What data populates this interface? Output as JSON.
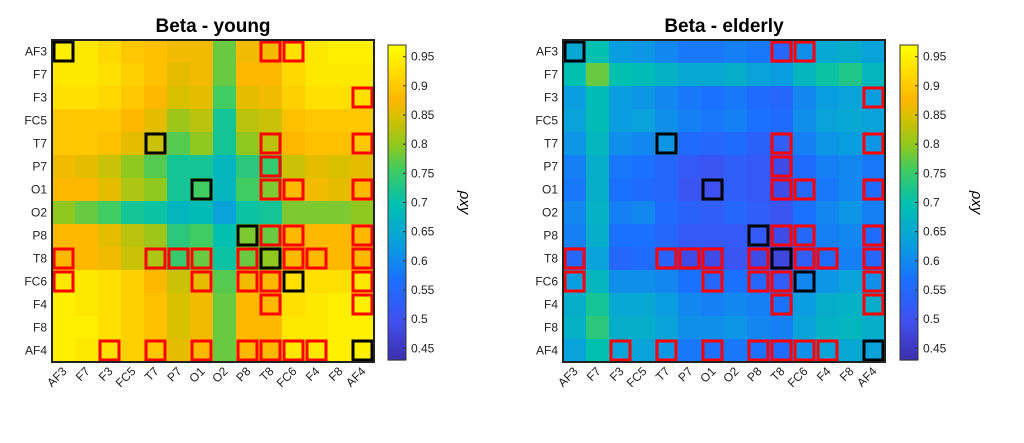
{
  "chart_data": [
    {
      "type": "heatmap",
      "title": "Beta - young",
      "labels": [
        "AF3",
        "F7",
        "F3",
        "FC5",
        "T7",
        "P7",
        "O1",
        "O2",
        "P8",
        "T8",
        "FC6",
        "F4",
        "F8",
        "AF4"
      ],
      "colorbar_label": "ρxy",
      "colorbar_ticks": [
        "0.45",
        "0.5",
        "0.55",
        "0.6",
        "0.65",
        "0.7",
        "0.75",
        "0.8",
        "0.85",
        "0.9",
        "0.95"
      ],
      "clim": [
        0.43,
        0.97
      ],
      "values": [
        [
          0.95,
          0.94,
          0.92,
          0.9,
          0.89,
          0.87,
          0.87,
          0.78,
          0.87,
          0.87,
          0.93,
          0.94,
          0.95,
          0.95
        ],
        [
          0.94,
          0.94,
          0.93,
          0.91,
          0.89,
          0.86,
          0.87,
          0.78,
          0.88,
          0.88,
          0.92,
          0.94,
          0.94,
          0.94
        ],
        [
          0.93,
          0.93,
          0.92,
          0.9,
          0.88,
          0.85,
          0.86,
          0.76,
          0.86,
          0.87,
          0.91,
          0.93,
          0.93,
          0.93
        ],
        [
          0.9,
          0.9,
          0.9,
          0.88,
          0.86,
          0.81,
          0.83,
          0.72,
          0.83,
          0.84,
          0.89,
          0.9,
          0.9,
          0.9
        ],
        [
          0.9,
          0.9,
          0.89,
          0.86,
          0.84,
          0.77,
          0.8,
          0.72,
          0.8,
          0.83,
          0.88,
          0.89,
          0.89,
          0.9
        ],
        [
          0.87,
          0.86,
          0.84,
          0.8,
          0.77,
          0.72,
          0.72,
          0.68,
          0.74,
          0.75,
          0.84,
          0.86,
          0.85,
          0.86
        ],
        [
          0.88,
          0.88,
          0.86,
          0.82,
          0.8,
          0.72,
          0.76,
          0.68,
          0.76,
          0.79,
          0.88,
          0.87,
          0.86,
          0.88
        ],
        [
          0.8,
          0.78,
          0.76,
          0.72,
          0.71,
          0.68,
          0.69,
          0.64,
          0.71,
          0.72,
          0.79,
          0.79,
          0.79,
          0.8
        ],
        [
          0.88,
          0.88,
          0.86,
          0.83,
          0.81,
          0.74,
          0.76,
          0.7,
          0.79,
          0.78,
          0.88,
          0.88,
          0.88,
          0.88
        ],
        [
          0.88,
          0.88,
          0.87,
          0.84,
          0.82,
          0.75,
          0.78,
          0.71,
          0.78,
          0.8,
          0.88,
          0.88,
          0.88,
          0.88
        ],
        [
          0.94,
          0.94,
          0.93,
          0.91,
          0.88,
          0.84,
          0.86,
          0.77,
          0.87,
          0.88,
          0.93,
          0.93,
          0.93,
          0.94
        ],
        [
          0.95,
          0.94,
          0.93,
          0.91,
          0.89,
          0.85,
          0.87,
          0.78,
          0.88,
          0.88,
          0.93,
          0.94,
          0.95,
          0.95
        ],
        [
          0.95,
          0.95,
          0.93,
          0.91,
          0.89,
          0.85,
          0.87,
          0.78,
          0.88,
          0.88,
          0.94,
          0.94,
          0.95,
          0.95
        ],
        [
          0.95,
          0.94,
          0.93,
          0.91,
          0.9,
          0.86,
          0.88,
          0.78,
          0.88,
          0.88,
          0.94,
          0.94,
          0.95,
          0.95
        ]
      ]
    },
    {
      "type": "heatmap",
      "title": "Beta - elderly",
      "labels": [
        "AF3",
        "F7",
        "F3",
        "FC5",
        "T7",
        "P7",
        "O1",
        "O2",
        "P8",
        "T8",
        "FC6",
        "F4",
        "F8",
        "AF4"
      ],
      "colorbar_label": "ρxy",
      "colorbar_ticks": [
        "0.45",
        "0.5",
        "0.55",
        "0.6",
        "0.65",
        "0.7",
        "0.75",
        "0.8",
        "0.85",
        "0.9",
        "0.95"
      ],
      "clim": [
        0.43,
        0.97
      ],
      "values": [
        [
          0.65,
          0.7,
          0.63,
          0.62,
          0.6,
          0.58,
          0.58,
          0.59,
          0.58,
          0.55,
          0.61,
          0.65,
          0.66,
          0.64
        ],
        [
          0.7,
          0.78,
          0.7,
          0.69,
          0.67,
          0.65,
          0.65,
          0.66,
          0.64,
          0.63,
          0.68,
          0.71,
          0.73,
          0.68
        ],
        [
          0.63,
          0.69,
          0.63,
          0.62,
          0.6,
          0.58,
          0.57,
          0.58,
          0.56,
          0.55,
          0.6,
          0.63,
          0.64,
          0.63
        ],
        [
          0.64,
          0.69,
          0.63,
          0.64,
          0.61,
          0.59,
          0.58,
          0.59,
          0.57,
          0.56,
          0.61,
          0.64,
          0.65,
          0.64
        ],
        [
          0.62,
          0.68,
          0.61,
          0.6,
          0.62,
          0.56,
          0.55,
          0.56,
          0.54,
          0.53,
          0.59,
          0.62,
          0.63,
          0.62
        ],
        [
          0.59,
          0.66,
          0.58,
          0.57,
          0.55,
          0.52,
          0.51,
          0.53,
          0.52,
          0.49,
          0.56,
          0.59,
          0.6,
          0.58
        ],
        [
          0.58,
          0.66,
          0.57,
          0.56,
          0.55,
          0.51,
          0.5,
          0.53,
          0.52,
          0.49,
          0.55,
          0.58,
          0.6,
          0.56
        ],
        [
          0.6,
          0.67,
          0.59,
          0.6,
          0.56,
          0.54,
          0.53,
          0.55,
          0.53,
          0.51,
          0.57,
          0.6,
          0.62,
          0.59
        ],
        [
          0.59,
          0.66,
          0.57,
          0.57,
          0.55,
          0.52,
          0.52,
          0.52,
          0.52,
          0.49,
          0.55,
          0.59,
          0.6,
          0.56
        ],
        [
          0.55,
          0.64,
          0.55,
          0.56,
          0.54,
          0.49,
          0.49,
          0.51,
          0.49,
          0.48,
          0.53,
          0.56,
          0.59,
          0.55
        ],
        [
          0.63,
          0.68,
          0.61,
          0.61,
          0.6,
          0.57,
          0.55,
          0.57,
          0.55,
          0.53,
          0.6,
          0.62,
          0.64,
          0.61
        ],
        [
          0.66,
          0.72,
          0.65,
          0.65,
          0.63,
          0.6,
          0.59,
          0.6,
          0.59,
          0.57,
          0.63,
          0.66,
          0.67,
          0.66
        ],
        [
          0.67,
          0.74,
          0.66,
          0.66,
          0.64,
          0.61,
          0.61,
          0.62,
          0.6,
          0.59,
          0.64,
          0.67,
          0.68,
          0.66
        ],
        [
          0.64,
          0.7,
          0.64,
          0.64,
          0.62,
          0.58,
          0.57,
          0.58,
          0.57,
          0.56,
          0.61,
          0.64,
          0.65,
          0.64
        ]
      ]
    }
  ],
  "highlight_red": [
    [
      0,
      9
    ],
    [
      0,
      10
    ],
    [
      2,
      13
    ],
    [
      4,
      9
    ],
    [
      4,
      13
    ],
    [
      5,
      9
    ],
    [
      6,
      9
    ],
    [
      6,
      10
    ],
    [
      6,
      13
    ],
    [
      8,
      9
    ],
    [
      8,
      10
    ],
    [
      8,
      13
    ],
    [
      9,
      0
    ],
    [
      9,
      4
    ],
    [
      9,
      5
    ],
    [
      9,
      6
    ],
    [
      9,
      8
    ],
    [
      9,
      10
    ],
    [
      9,
      11
    ],
    [
      9,
      13
    ],
    [
      10,
      0
    ],
    [
      10,
      6
    ],
    [
      10,
      8
    ],
    [
      10,
      9
    ],
    [
      10,
      13
    ],
    [
      11,
      9
    ],
    [
      11,
      13
    ],
    [
      13,
      2
    ],
    [
      13,
      4
    ],
    [
      13,
      6
    ],
    [
      13,
      8
    ],
    [
      13,
      9
    ],
    [
      13,
      10
    ],
    [
      13,
      11
    ]
  ],
  "highlight_black": [
    [
      0,
      0
    ],
    [
      4,
      4
    ],
    [
      6,
      6
    ],
    [
      8,
      8
    ],
    [
      9,
      9
    ],
    [
      10,
      10
    ],
    [
      13,
      13
    ]
  ],
  "colors": {
    "red": "#ff0000",
    "black": "#000000"
  }
}
